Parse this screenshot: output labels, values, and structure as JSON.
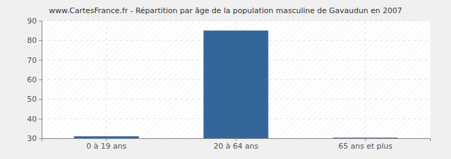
{
  "chart_data": {
    "type": "bar",
    "title": "www.CartesFrance.fr - Répartition par âge de la population masculine de Gavaudun en 2007",
    "categories": [
      "0 à 19 ans",
      "20 à 64 ans",
      "65 ans et plus"
    ],
    "values": [
      31,
      85,
      30.3
    ],
    "color": "#336699",
    "ylim": [
      30,
      90
    ],
    "yticks": [
      30,
      40,
      50,
      60,
      70,
      80,
      90
    ],
    "grid": true
  }
}
